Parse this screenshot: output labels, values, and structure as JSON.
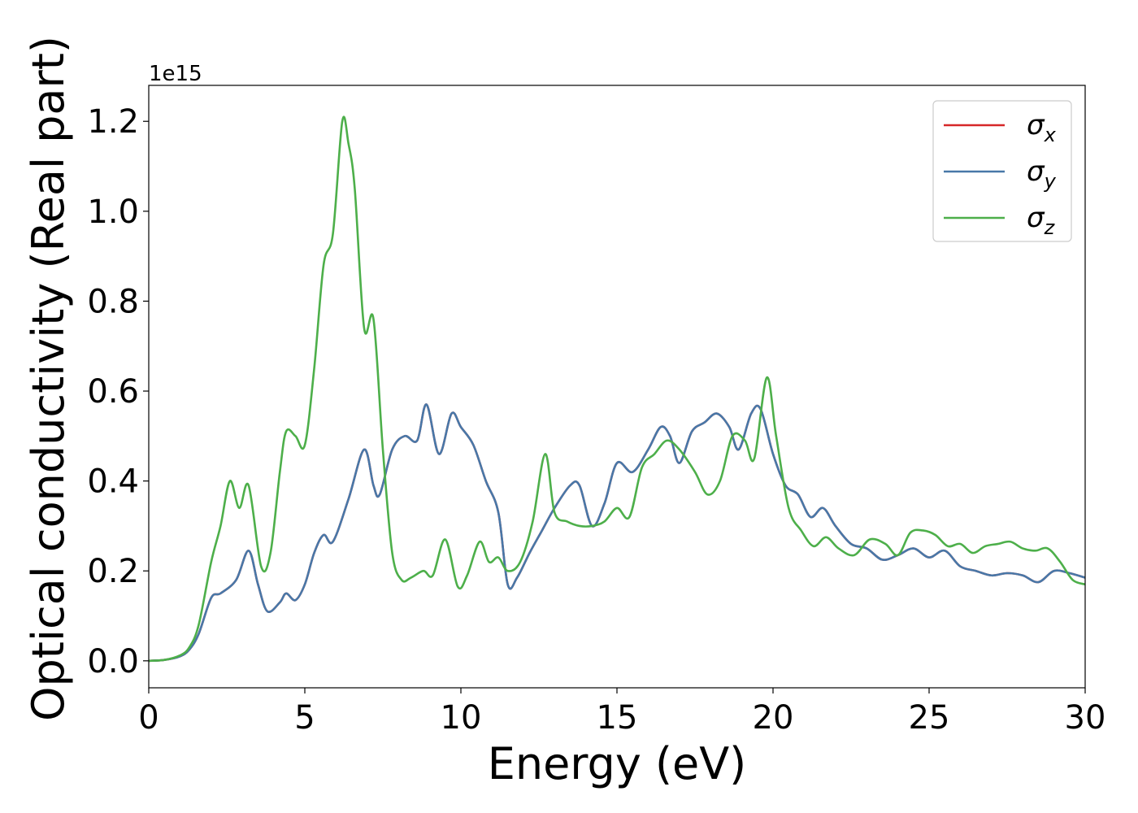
{
  "chart_data": {
    "type": "line",
    "title": "",
    "xlabel": "Energy (eV)",
    "ylabel": "Optical conductivity (Real part)",
    "y_offset_label": "1e15",
    "xlim": [
      0,
      30
    ],
    "ylim": [
      -0.06,
      1.28
    ],
    "xticks": [
      0,
      5,
      10,
      15,
      20,
      25,
      30
    ],
    "xtick_labels": [
      "0",
      "5",
      "10",
      "15",
      "20",
      "25",
      "30"
    ],
    "yticks": [
      0.0,
      0.2,
      0.4,
      0.6,
      0.8,
      1.0,
      1.2
    ],
    "ytick_labels": [
      "0.0",
      "0.2",
      "0.4",
      "0.6",
      "0.8",
      "1.0",
      "1.2"
    ],
    "grid": false,
    "legend_position": "top-right",
    "series": [
      {
        "name": "σ",
        "sub": "x",
        "color": "#d62728",
        "x": [
          0,
          0.5,
          1.0,
          1.3,
          1.6,
          2.0,
          2.3,
          2.8,
          3.2,
          3.5,
          3.8,
          4.2,
          4.4,
          4.7,
          5.0,
          5.3,
          5.6,
          5.9,
          6.4,
          6.9,
          7.2,
          7.4,
          7.8,
          8.2,
          8.6,
          8.9,
          9.3,
          9.7,
          10.0,
          10.4,
          10.8,
          11.2,
          11.5,
          11.8,
          12.2,
          12.6,
          13.0,
          13.5,
          13.8,
          14.2,
          14.6,
          15.0,
          15.5,
          16.0,
          16.4,
          16.7,
          17.0,
          17.4,
          17.8,
          18.2,
          18.6,
          18.9,
          19.3,
          19.6,
          20.0,
          20.4,
          20.8,
          21.2,
          21.6,
          22.0,
          22.5,
          23.0,
          23.5,
          24.0,
          24.5,
          25.0,
          25.5,
          26.0,
          26.5,
          27.0,
          27.5,
          28.0,
          28.5,
          29.0,
          29.5,
          30.0
        ],
        "y": [
          0.0,
          0.002,
          0.01,
          0.025,
          0.06,
          0.14,
          0.15,
          0.18,
          0.245,
          0.17,
          0.11,
          0.13,
          0.15,
          0.135,
          0.17,
          0.24,
          0.28,
          0.265,
          0.36,
          0.47,
          0.39,
          0.37,
          0.47,
          0.5,
          0.49,
          0.57,
          0.46,
          0.55,
          0.52,
          0.48,
          0.4,
          0.33,
          0.17,
          0.185,
          0.24,
          0.29,
          0.34,
          0.39,
          0.39,
          0.3,
          0.35,
          0.44,
          0.42,
          0.47,
          0.52,
          0.5,
          0.44,
          0.51,
          0.53,
          0.55,
          0.52,
          0.47,
          0.55,
          0.56,
          0.46,
          0.39,
          0.37,
          0.32,
          0.34,
          0.3,
          0.26,
          0.25,
          0.225,
          0.235,
          0.25,
          0.23,
          0.245,
          0.21,
          0.2,
          0.19,
          0.195,
          0.19,
          0.175,
          0.2,
          0.195,
          0.185
        ]
      },
      {
        "name": "σ",
        "sub": "y",
        "color": "#4878a8",
        "x": [
          0,
          0.5,
          1.0,
          1.3,
          1.6,
          2.0,
          2.3,
          2.8,
          3.2,
          3.5,
          3.8,
          4.2,
          4.4,
          4.7,
          5.0,
          5.3,
          5.6,
          5.9,
          6.4,
          6.9,
          7.2,
          7.4,
          7.8,
          8.2,
          8.6,
          8.9,
          9.3,
          9.7,
          10.0,
          10.4,
          10.8,
          11.2,
          11.5,
          11.8,
          12.2,
          12.6,
          13.0,
          13.5,
          13.8,
          14.2,
          14.6,
          15.0,
          15.5,
          16.0,
          16.4,
          16.7,
          17.0,
          17.4,
          17.8,
          18.2,
          18.6,
          18.9,
          19.3,
          19.6,
          20.0,
          20.4,
          20.8,
          21.2,
          21.6,
          22.0,
          22.5,
          23.0,
          23.5,
          24.0,
          24.5,
          25.0,
          25.5,
          26.0,
          26.5,
          27.0,
          27.5,
          28.0,
          28.5,
          29.0,
          29.5,
          30.0
        ],
        "y": [
          0.0,
          0.002,
          0.01,
          0.025,
          0.06,
          0.14,
          0.15,
          0.18,
          0.245,
          0.17,
          0.11,
          0.13,
          0.15,
          0.135,
          0.17,
          0.24,
          0.28,
          0.265,
          0.36,
          0.47,
          0.39,
          0.37,
          0.47,
          0.5,
          0.49,
          0.57,
          0.46,
          0.55,
          0.52,
          0.48,
          0.4,
          0.33,
          0.17,
          0.185,
          0.24,
          0.29,
          0.34,
          0.39,
          0.39,
          0.3,
          0.35,
          0.44,
          0.42,
          0.47,
          0.52,
          0.5,
          0.44,
          0.51,
          0.53,
          0.55,
          0.52,
          0.47,
          0.55,
          0.56,
          0.46,
          0.39,
          0.37,
          0.32,
          0.34,
          0.3,
          0.26,
          0.25,
          0.225,
          0.235,
          0.25,
          0.23,
          0.245,
          0.21,
          0.2,
          0.19,
          0.195,
          0.19,
          0.175,
          0.2,
          0.195,
          0.185
        ]
      },
      {
        "name": "σ",
        "sub": "z",
        "color": "#4daf4a",
        "x": [
          0,
          0.5,
          1.0,
          1.3,
          1.6,
          2.0,
          2.3,
          2.6,
          2.9,
          3.2,
          3.6,
          3.9,
          4.2,
          4.4,
          4.7,
          5.0,
          5.3,
          5.6,
          5.9,
          6.2,
          6.4,
          6.6,
          6.9,
          7.2,
          7.5,
          7.8,
          8.1,
          8.4,
          8.8,
          9.1,
          9.5,
          9.9,
          10.2,
          10.6,
          10.9,
          11.2,
          11.5,
          11.9,
          12.3,
          12.7,
          13.0,
          13.4,
          13.8,
          14.2,
          14.6,
          15.0,
          15.4,
          15.8,
          16.2,
          16.6,
          17.0,
          17.5,
          17.9,
          18.3,
          18.7,
          19.1,
          19.4,
          19.8,
          20.1,
          20.5,
          20.9,
          21.3,
          21.7,
          22.1,
          22.6,
          23.1,
          23.6,
          24.0,
          24.4,
          24.8,
          25.2,
          25.6,
          26.0,
          26.4,
          26.8,
          27.2,
          27.6,
          28.0,
          28.4,
          28.8,
          29.2,
          29.6,
          30.0
        ],
        "y": [
          0.0,
          0.002,
          0.012,
          0.03,
          0.08,
          0.22,
          0.3,
          0.4,
          0.34,
          0.39,
          0.21,
          0.24,
          0.42,
          0.51,
          0.5,
          0.48,
          0.65,
          0.88,
          0.95,
          1.2,
          1.15,
          1.05,
          0.74,
          0.76,
          0.47,
          0.24,
          0.18,
          0.185,
          0.2,
          0.19,
          0.27,
          0.165,
          0.19,
          0.265,
          0.22,
          0.23,
          0.2,
          0.22,
          0.31,
          0.46,
          0.33,
          0.31,
          0.3,
          0.3,
          0.31,
          0.34,
          0.32,
          0.43,
          0.46,
          0.49,
          0.47,
          0.42,
          0.37,
          0.4,
          0.5,
          0.49,
          0.45,
          0.63,
          0.5,
          0.34,
          0.29,
          0.255,
          0.275,
          0.25,
          0.235,
          0.27,
          0.26,
          0.235,
          0.285,
          0.29,
          0.28,
          0.255,
          0.26,
          0.24,
          0.255,
          0.26,
          0.265,
          0.25,
          0.245,
          0.25,
          0.22,
          0.18,
          0.17
        ]
      }
    ]
  }
}
